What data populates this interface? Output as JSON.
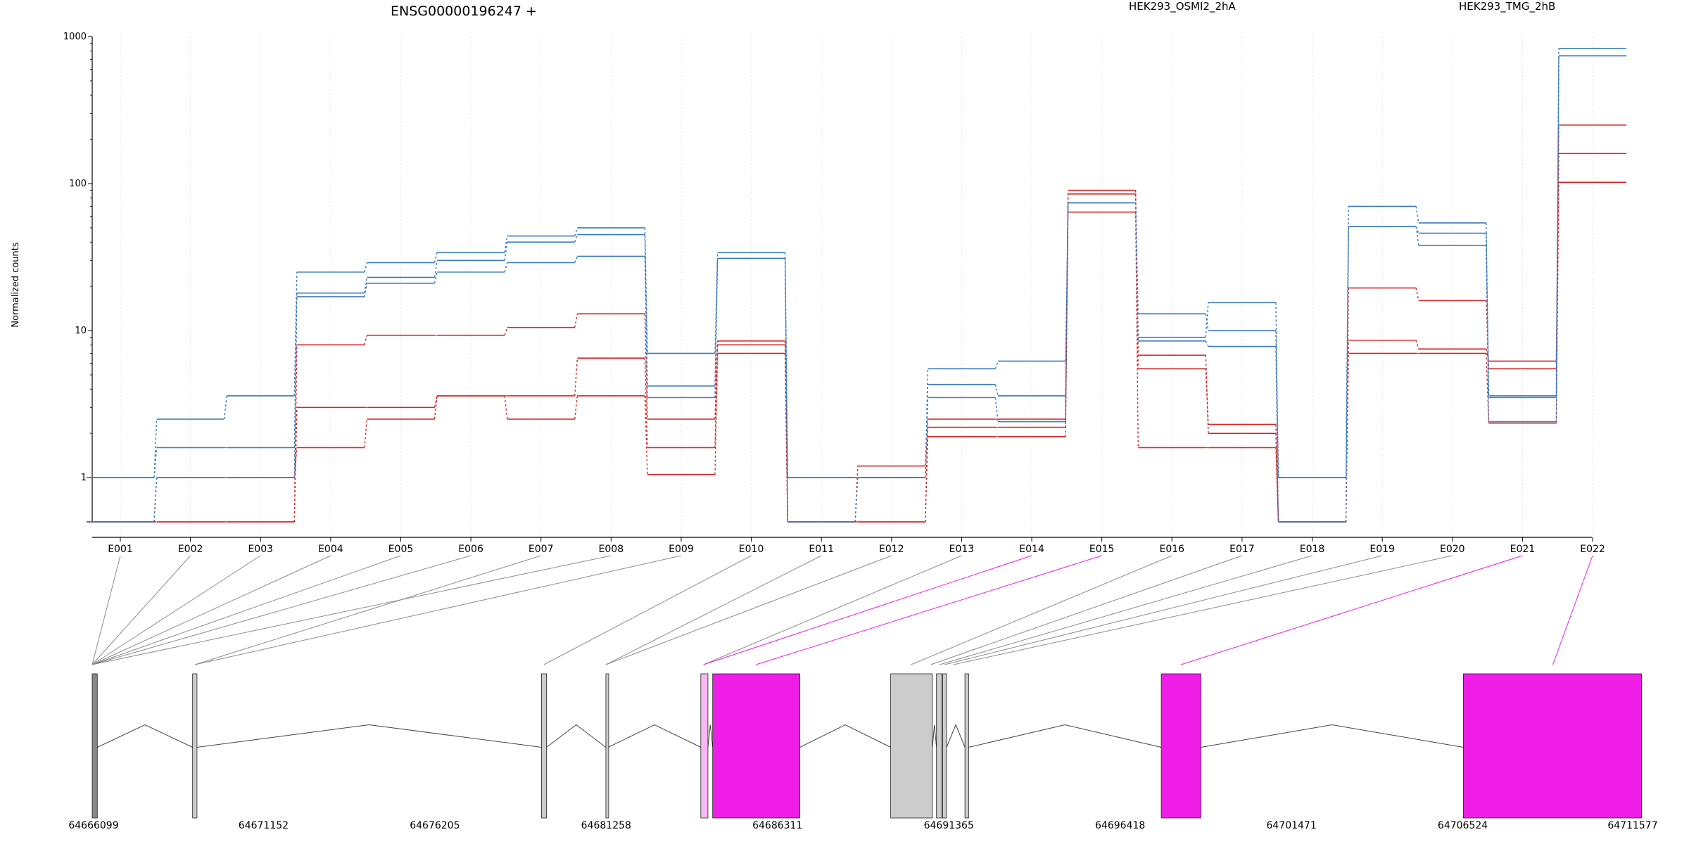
{
  "chart_data": {
    "type": "line",
    "title": "ENSG00000196247 +",
    "ylabel": "Normalized counts",
    "xlabel": "",
    "yscale": "log",
    "ylim": [
      0.5,
      1000
    ],
    "y_ticks": [
      {
        "value": 1,
        "label": "1"
      },
      {
        "value": 10,
        "label": "10"
      },
      {
        "value": 100,
        "label": "100"
      },
      {
        "value": 1000,
        "label": "1000"
      }
    ],
    "grid": "vertical-dotted",
    "legend": [
      {
        "name": "HEK293_OSMI2_2hA",
        "color": "#d62728"
      },
      {
        "name": "HEK293_TMG_2hB",
        "color": "#3a7bbf"
      }
    ],
    "categories": [
      "E001",
      "E002",
      "E003",
      "E004",
      "E005",
      "E006",
      "E007",
      "E008",
      "E009",
      "E010",
      "E011",
      "E012",
      "E013",
      "E014",
      "E015",
      "E016",
      "E017",
      "E018",
      "E019",
      "E020",
      "E021",
      "E022"
    ],
    "series": [
      {
        "group": "HEK293_OSMI2_2hA",
        "color": "#d62728",
        "values": [
          0.5,
          0.5,
          0.5,
          3.0,
          3.0,
          3.6,
          3.6,
          6.5,
          1.6,
          8.5,
          0.5,
          1.2,
          2.2,
          2.2,
          90,
          5.5,
          2.3,
          0.5,
          8.6,
          7.5,
          6.2,
          250
        ]
      },
      {
        "group": "HEK293_OSMI2_2hA",
        "color": "#d62728",
        "values": [
          0.5,
          0.5,
          0.5,
          8.0,
          9.3,
          9.3,
          10.5,
          13.0,
          2.5,
          8.0,
          0.5,
          0.5,
          2.5,
          2.5,
          85,
          6.8,
          2.0,
          0.5,
          19.5,
          16.0,
          5.5,
          160
        ]
      },
      {
        "group": "HEK293_OSMI2_2hA",
        "color": "#d62728",
        "values": [
          0.5,
          1.0,
          1.0,
          1.6,
          2.5,
          3.6,
          2.5,
          3.6,
          1.05,
          7.0,
          0.5,
          0.5,
          1.9,
          1.9,
          64,
          1.6,
          1.6,
          0.5,
          7.0,
          7.0,
          2.35,
          102
        ]
      },
      {
        "group": "HEK293_TMG_2hB",
        "color": "#3a7bbf",
        "values": [
          1.0,
          2.5,
          3.6,
          25,
          29,
          34,
          44,
          50,
          7.0,
          34,
          1.0,
          1.0,
          5.5,
          6.2,
          74,
          9.0,
          15.5,
          1.0,
          70,
          54,
          3.6,
          830
        ]
      },
      {
        "group": "HEK293_TMG_2hB",
        "color": "#3a7bbf",
        "values": [
          1.0,
          1.6,
          1.6,
          18,
          23,
          30,
          40,
          45,
          4.2,
          31,
          1.0,
          1.0,
          4.3,
          3.6,
          74,
          13.0,
          10.0,
          1.0,
          51,
          46,
          3.5,
          740
        ]
      },
      {
        "group": "HEK293_TMG_2hB",
        "color": "#3a7bbf",
        "values": [
          0.5,
          1.0,
          1.0,
          17,
          21,
          25,
          29,
          32,
          3.5,
          31,
          0.5,
          1.0,
          3.5,
          2.4,
          74,
          8.5,
          7.8,
          0.5,
          51,
          38,
          2.4,
          740
        ]
      }
    ],
    "gene_model": {
      "start": 64666099,
      "end": 64711577,
      "axis_ticks": [
        64666099,
        64671152,
        64676205,
        64681258,
        64686311,
        64691365,
        64696418,
        64701471,
        64706524,
        64711577
      ],
      "highlight_color": "#f01de6",
      "exon_color": "#cccccc",
      "exons": [
        {
          "start": 64666099,
          "end": 64666250,
          "fill": "#888888"
        },
        {
          "start": 64669060,
          "end": 64669190,
          "fill": "#cccccc"
        },
        {
          "start": 64679350,
          "end": 64679500,
          "fill": "#cccccc"
        },
        {
          "start": 64681250,
          "end": 64681320,
          "fill": "#cccccc"
        },
        {
          "start": 64684050,
          "end": 64684260,
          "fill": "#f9b7f4"
        },
        {
          "start": 64684400,
          "end": 64686970,
          "fill": "#f01de6"
        },
        {
          "start": 64689650,
          "end": 64690880,
          "fill": "#cccccc"
        },
        {
          "start": 64691000,
          "end": 64691160,
          "fill": "#cccccc"
        },
        {
          "start": 64691180,
          "end": 64691300,
          "fill": "#cccccc"
        },
        {
          "start": 64691840,
          "end": 64691950,
          "fill": "#cccccc"
        },
        {
          "start": 64697630,
          "end": 64698800,
          "fill": "#f01de6"
        },
        {
          "start": 64706540,
          "end": 64711800,
          "fill": "#f01de6"
        }
      ],
      "connectors": [
        {
          "exon": "E001",
          "genomic": 64666099,
          "highlight": false
        },
        {
          "exon": "E002",
          "genomic": 64666099,
          "highlight": false
        },
        {
          "exon": "E003",
          "genomic": 64666099,
          "highlight": false
        },
        {
          "exon": "E004",
          "genomic": 64666099,
          "highlight": false
        },
        {
          "exon": "E005",
          "genomic": 64666099,
          "highlight": false
        },
        {
          "exon": "E006",
          "genomic": 64666099,
          "highlight": false
        },
        {
          "exon": "E007",
          "genomic": 64669130,
          "highlight": false
        },
        {
          "exon": "E008",
          "genomic": 64666099,
          "highlight": false
        },
        {
          "exon": "E009",
          "genomic": 64669130,
          "highlight": false
        },
        {
          "exon": "E010",
          "genomic": 64679420,
          "highlight": false
        },
        {
          "exon": "E011",
          "genomic": 64681250,
          "highlight": false
        },
        {
          "exon": "E012",
          "genomic": 64681250,
          "highlight": false
        },
        {
          "exon": "E013",
          "genomic": 64684130,
          "highlight": false
        },
        {
          "exon": "E014",
          "genomic": 64684130,
          "highlight": true
        },
        {
          "exon": "E015",
          "genomic": 64685680,
          "highlight": true
        },
        {
          "exon": "E016",
          "genomic": 64690250,
          "highlight": false
        },
        {
          "exon": "E017",
          "genomic": 64690830,
          "highlight": false
        },
        {
          "exon": "E018",
          "genomic": 64691090,
          "highlight": false
        },
        {
          "exon": "E019",
          "genomic": 64691240,
          "highlight": false
        },
        {
          "exon": "E020",
          "genomic": 64691500,
          "highlight": false
        },
        {
          "exon": "E021",
          "genomic": 64698210,
          "highlight": true
        },
        {
          "exon": "E022",
          "genomic": 64709180,
          "highlight": true
        }
      ]
    }
  }
}
